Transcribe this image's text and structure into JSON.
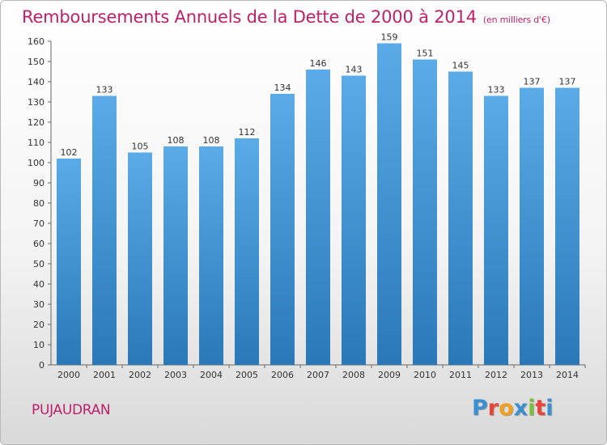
{
  "chart_data": {
    "type": "bar",
    "title": "Remboursements Annuels de la Dette de 2000 à 2014",
    "subtitle": "(en milliers d'€)",
    "xlabel": "",
    "ylabel": "",
    "categories": [
      "2000",
      "2001",
      "2002",
      "2003",
      "2004",
      "2005",
      "2006",
      "2007",
      "2008",
      "2009",
      "2010",
      "2011",
      "2012",
      "2013",
      "2014"
    ],
    "values": [
      102,
      133,
      105,
      108,
      108,
      112,
      134,
      146,
      143,
      159,
      151,
      145,
      133,
      137,
      137
    ],
    "ylim": [
      0,
      160
    ],
    "yticks": [
      0,
      10,
      20,
      30,
      40,
      50,
      60,
      70,
      80,
      90,
      100,
      110,
      120,
      130,
      140,
      150,
      160
    ],
    "grid": false,
    "legend": "none",
    "bar_color_top": "#5aabe8",
    "bar_color_bottom": "#2a78b8"
  },
  "footer": {
    "town": "PUJAUDRAN",
    "logo_letters": [
      {
        "ch": "P",
        "color": "#3a8fd0"
      },
      {
        "ch": "r",
        "color": "#e8443a"
      },
      {
        "ch": "o",
        "color": "#f0a020"
      },
      {
        "ch": "x",
        "color": "#3a8fd0"
      },
      {
        "ch": "i",
        "color": "#7cbf3a"
      },
      {
        "ch": "t",
        "color": "#e8443a"
      },
      {
        "ch": "i",
        "color": "#3a8fd0"
      }
    ]
  }
}
